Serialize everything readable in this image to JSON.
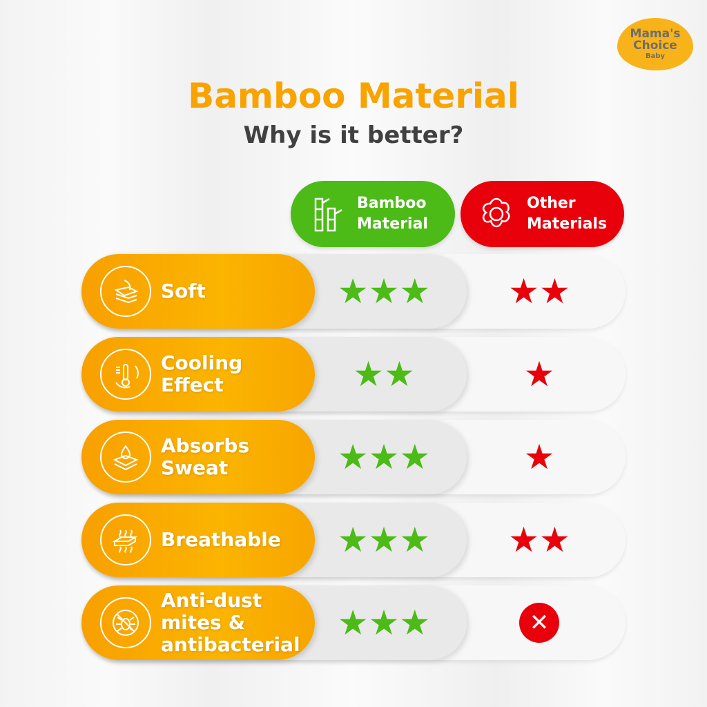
{
  "logo": {
    "line1": "Mama's",
    "line2": "Choice",
    "line3": "Baby"
  },
  "title": "Bamboo Material",
  "subtitle": "Why is it better?",
  "columns": {
    "bamboo": "Bamboo Material",
    "other": "Other Materials"
  },
  "colors": {
    "orange": "#F8A300",
    "green": "#4CBB17",
    "red": "#E8000B"
  },
  "rows": [
    {
      "label": "Soft",
      "icon": "feather-fabric-icon",
      "bamboo_stars": 3,
      "other_stars": 2
    },
    {
      "label": "Cooling Effect",
      "icon": "thermometer-icon",
      "bamboo_stars": 2,
      "other_stars": 1
    },
    {
      "label": "Absorbs Sweat",
      "icon": "water-drop-fabric-icon",
      "bamboo_stars": 3,
      "other_stars": 1
    },
    {
      "label": "Breathable",
      "icon": "airflow-icon",
      "bamboo_stars": 3,
      "other_stars": 2
    },
    {
      "label": "Anti-dust mites & antibacterial",
      "icon": "no-mite-icon",
      "bamboo_stars": 3,
      "other_stars": 0,
      "other_mark": "✕"
    }
  ]
}
